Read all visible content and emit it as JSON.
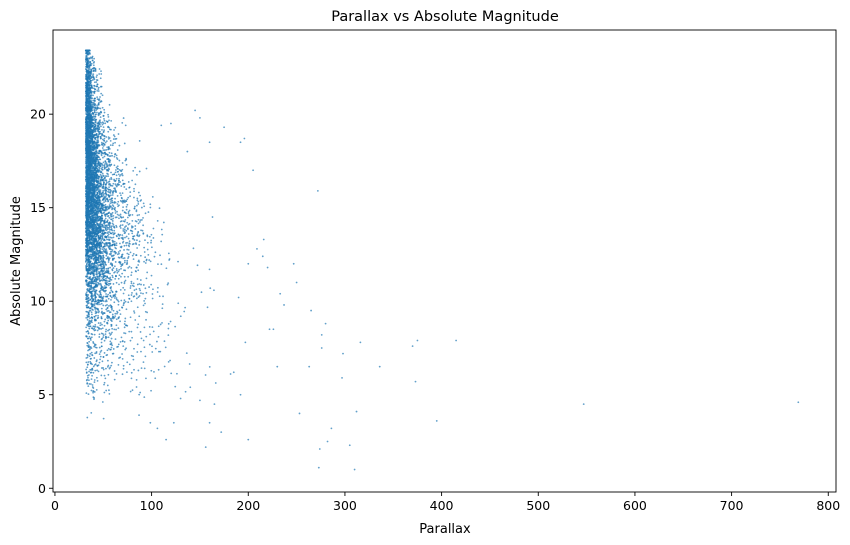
{
  "chart_data": {
    "type": "scatter",
    "title": "Parallax vs Absolute Magnitude",
    "xlabel": "Parallax",
    "ylabel": "Absolute Magnitude",
    "xlim": [
      -2,
      808
    ],
    "ylim": [
      -0.2,
      24.5
    ],
    "xticks": [
      0,
      100,
      200,
      300,
      400,
      500,
      600,
      700,
      800
    ],
    "yticks": [
      0,
      5,
      10,
      15,
      20
    ],
    "grid": false,
    "legend": "none",
    "marker_color": "#1f77b4",
    "series": [
      {
        "x": [
          769,
          547,
          415,
          375,
          370,
          336,
          316,
          298,
          280,
          276,
          263,
          310,
          395,
          373,
          253,
          247,
          272,
          205,
          196,
          192,
          175,
          160,
          312,
          297,
          286,
          282,
          274,
          273,
          276,
          305,
          265,
          233,
          226,
          220,
          215,
          197,
          190,
          163,
          150,
          145,
          137,
          120,
          110,
          250,
          237,
          230,
          222,
          216,
          209,
          200,
          200,
          192,
          185,
          172,
          165,
          160,
          156,
          150,
          140,
          130,
          123,
          115,
          106
        ],
        "y": [
          4.6,
          4.5,
          7.9,
          7.9,
          7.6,
          6.5,
          7.8,
          7.2,
          8.8,
          8.2,
          6.5,
          1.0,
          3.6,
          5.7,
          4.0,
          12.0,
          15.9,
          17.0,
          18.7,
          18.5,
          19.3,
          18.5,
          4.1,
          5.9,
          3.2,
          2.5,
          2.1,
          1.1,
          7.5,
          2.3,
          9.5,
          10.4,
          8.5,
          11.8,
          12.4,
          7.8,
          10.2,
          14.5,
          19.8,
          20.2,
          18.0,
          19.5,
          19.4,
          11.0,
          9.8,
          6.5,
          8.5,
          13.3,
          12.8,
          12.0,
          2.6,
          5.0,
          6.2,
          3.0,
          4.5,
          3.5,
          2.2,
          4.7,
          5.4,
          4.8,
          3.5,
          2.6,
          3.2
        ]
      }
    ],
    "dense_distribution": {
      "description_values": "main cloud: parallax ~32-100 (mostly 32-60), absolute magnitude ~3.5-23.4; densest at parallax 32-42",
      "x_min": 32,
      "y_min": 3.5,
      "y_max": 23.4
    }
  }
}
